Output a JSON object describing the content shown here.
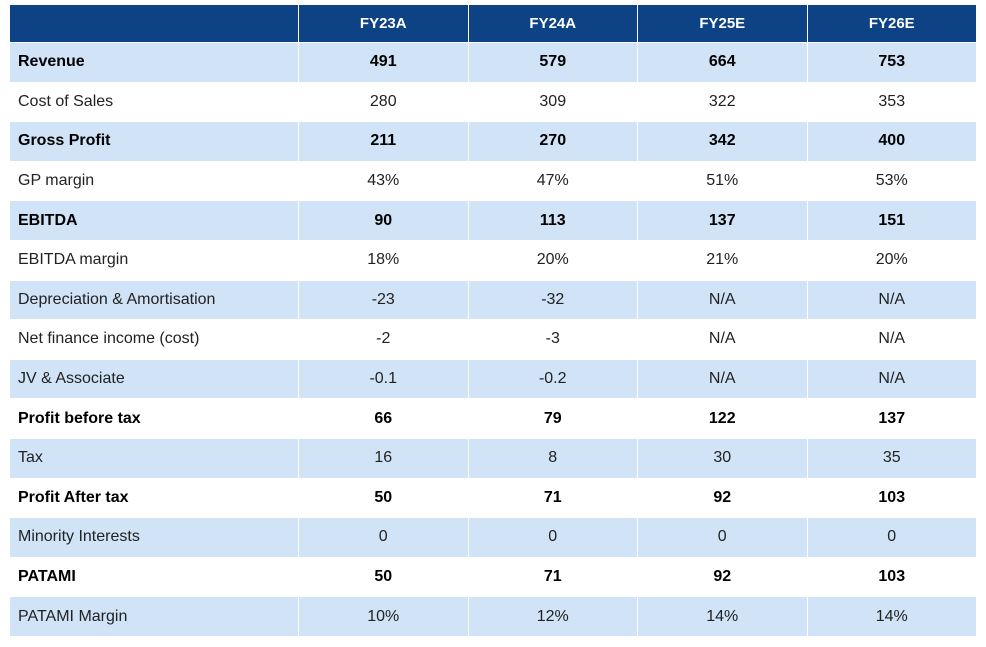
{
  "table": {
    "columns": [
      "FY23A",
      "FY24A",
      "FY25E",
      "FY26E"
    ],
    "rows": [
      {
        "label": "Revenue",
        "bold": true,
        "cells": [
          "491",
          "579",
          "664",
          "753"
        ]
      },
      {
        "label": "Cost of Sales",
        "bold": false,
        "cells": [
          "280",
          "309",
          "322",
          "353"
        ]
      },
      {
        "label": "Gross Profit",
        "bold": true,
        "cells": [
          "211",
          "270",
          "342",
          "400"
        ]
      },
      {
        "label": "GP margin",
        "bold": false,
        "cells": [
          "43%",
          "47%",
          "51%",
          "53%"
        ]
      },
      {
        "label": "EBITDA",
        "bold": true,
        "cells": [
          "90",
          "113",
          "137",
          "151"
        ]
      },
      {
        "label": "EBITDA margin",
        "bold": false,
        "cells": [
          "18%",
          "20%",
          "21%",
          "20%"
        ]
      },
      {
        "label": "Depreciation & Amortisation",
        "bold": false,
        "cells": [
          "-23",
          "-32",
          "N/A",
          "N/A"
        ]
      },
      {
        "label": "Net finance income (cost)",
        "bold": false,
        "cells": [
          "-2",
          "-3",
          "N/A",
          "N/A"
        ]
      },
      {
        "label": "JV & Associate",
        "bold": false,
        "cells": [
          "-0.1",
          "-0.2",
          "N/A",
          "N/A"
        ]
      },
      {
        "label": "Profit before tax",
        "bold": true,
        "cells": [
          "66",
          "79",
          "122",
          "137"
        ]
      },
      {
        "label": "Tax",
        "bold": false,
        "cells": [
          "16",
          "8",
          "30",
          "35"
        ]
      },
      {
        "label": "Profit After tax",
        "bold": true,
        "cells": [
          "50",
          "71",
          "92",
          "103"
        ]
      },
      {
        "label": "Minority Interests",
        "bold": false,
        "cells": [
          "0",
          "0",
          "0",
          "0"
        ]
      },
      {
        "label": "PATAMI",
        "bold": true,
        "cells": [
          "50",
          "71",
          "92",
          "103"
        ]
      },
      {
        "label": "PATAMI Margin",
        "bold": false,
        "cells": [
          "10%",
          "12%",
          "14%",
          "14%"
        ]
      }
    ]
  }
}
